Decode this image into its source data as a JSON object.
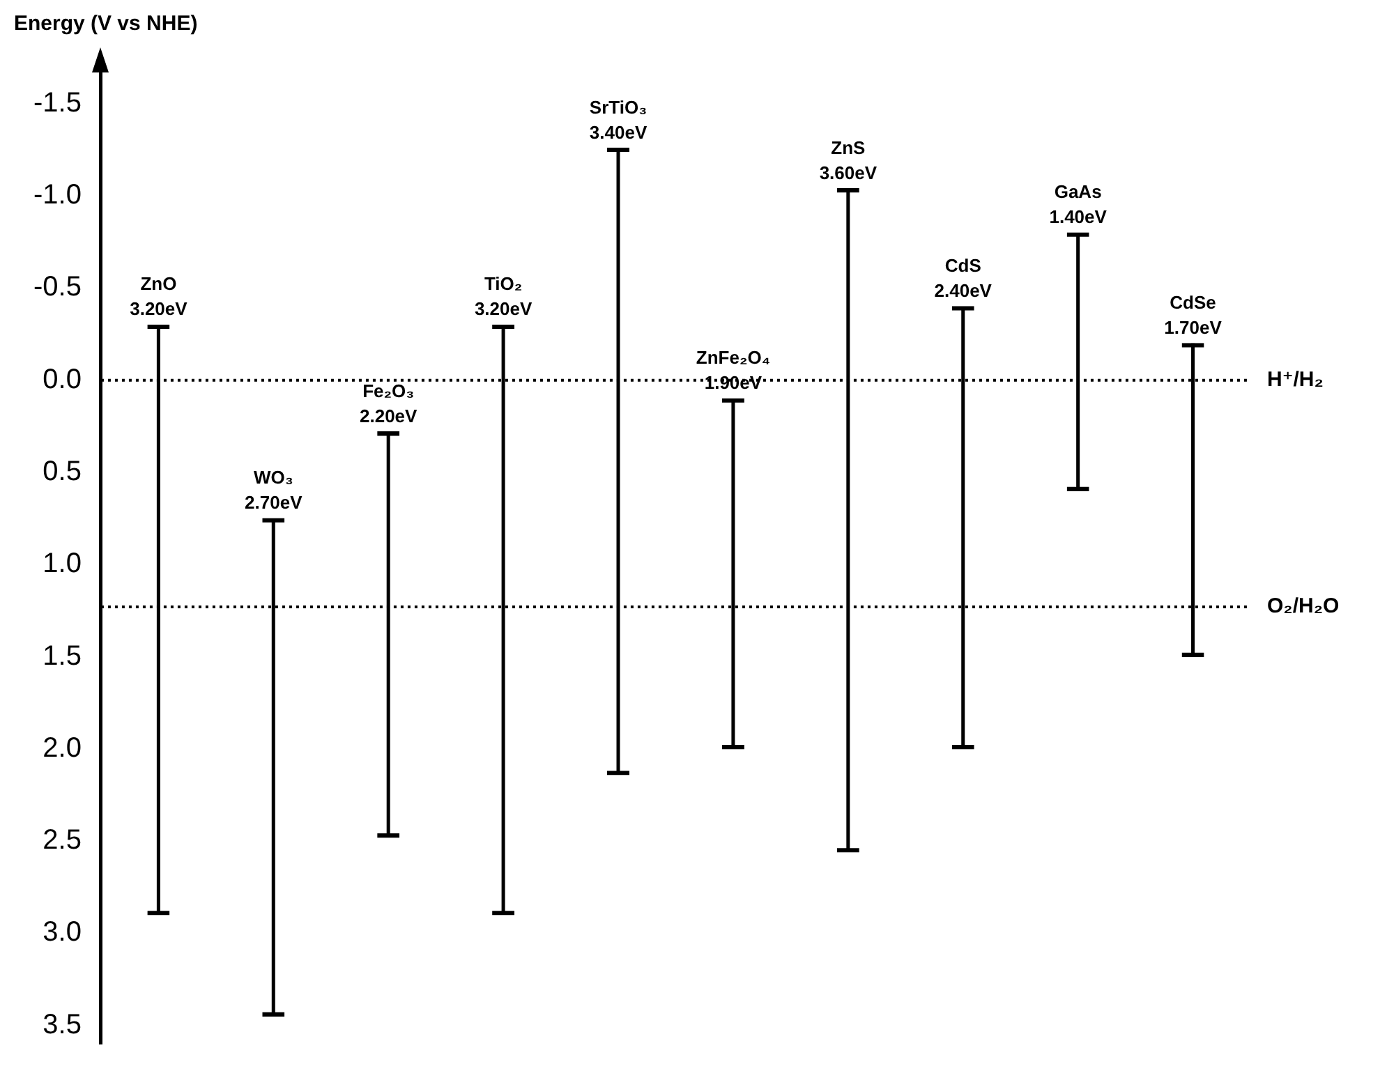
{
  "chart_data": {
    "type": "bar",
    "ylabel": "Energy (V vs NHE)",
    "categories": [
      "ZnO",
      "WO₃",
      "Fe₂O₃",
      "TiO₂",
      "SrTiO₃",
      "ZnFe₂O₄",
      "ZnS",
      "CdS",
      "GaAs",
      "CdSe"
    ],
    "base": [
      -0.3,
      0.75,
      0.28,
      -0.3,
      -1.26,
      0.1,
      -1.04,
      -0.4,
      -0.8,
      -0.2
    ],
    "values": [
      3.2,
      2.7,
      2.2,
      3.2,
      3.4,
      1.9,
      3.6,
      2.4,
      1.4,
      1.7
    ],
    "value_labels": [
      "3.20eV",
      "2.70eV",
      "2.20eV",
      "3.20eV",
      "3.40eV",
      "1.90eV",
      "3.60eV",
      "2.40eV",
      "1.40eV",
      "1.70eV"
    ],
    "color": "#000000",
    "ylim": [
      3.6,
      -1.7
    ],
    "yticks": [
      {
        "value": -1.5,
        "label": "-1.5"
      },
      {
        "value": -1,
        "label": "-1.0"
      },
      {
        "value": -0.5,
        "label": "-0.5"
      },
      {
        "value": 0,
        "label": "0.0"
      },
      {
        "value": 0.5,
        "label": "0.5"
      },
      {
        "value": 1,
        "label": "1.0"
      },
      {
        "value": 1.5,
        "label": "1.5"
      },
      {
        "value": 2,
        "label": "2.0"
      },
      {
        "value": 2.5,
        "label": "2.5"
      },
      {
        "value": 3,
        "label": "3.0"
      },
      {
        "value": 3.5,
        "label": "3.5"
      }
    ],
    "ref_lines": [
      {
        "axis": "y",
        "value": 0,
        "label": "H⁺/H₂",
        "color": "#000000",
        "line_style": "dotted"
      },
      {
        "axis": "y",
        "value": 1.23,
        "label": "O₂/H₂O",
        "color": "#000000",
        "line_style": "dotted"
      }
    ],
    "grid": false,
    "legend": false
  }
}
